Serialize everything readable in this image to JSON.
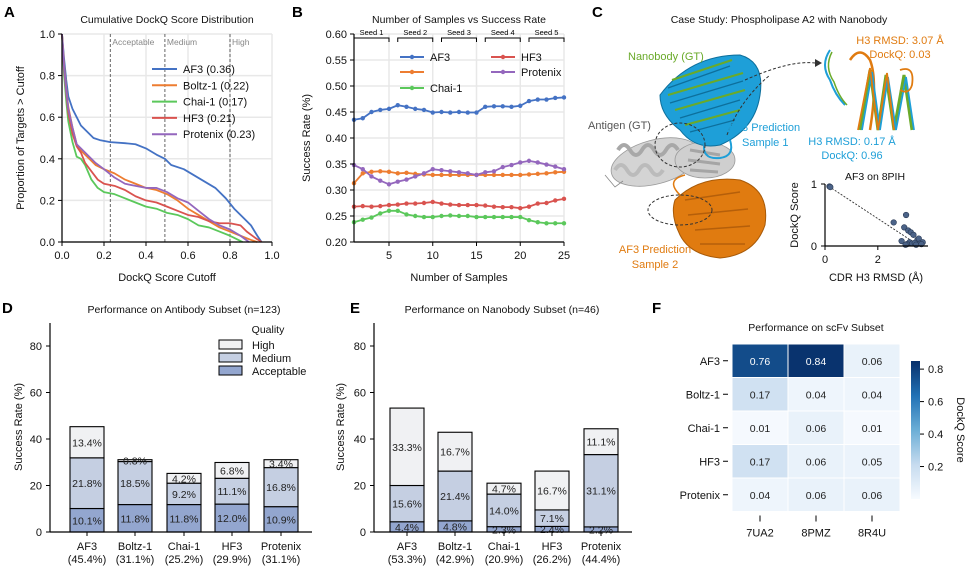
{
  "chart_data": [
    {
      "id": "A",
      "panel_label": "A",
      "type": "line",
      "title": "Cumulative DockQ Score Distribution",
      "xlabel": "DockQ Score Cutoff",
      "ylabel": "Proportion of Targets > Cutoff",
      "xlim": [
        0,
        1
      ],
      "ylim": [
        0,
        1
      ],
      "xticks": [
        "0.0",
        "0.2",
        "0.4",
        "0.6",
        "0.8",
        "1.0"
      ],
      "yticks": [
        "0.0",
        "0.2",
        "0.4",
        "0.6",
        "0.8",
        "1.0"
      ],
      "grid": true,
      "legend_position": "upper-right",
      "thresholds": [
        {
          "x": 0.23,
          "label": "Acceptable"
        },
        {
          "x": 0.49,
          "label": "Medium"
        },
        {
          "x": 0.8,
          "label": "High"
        }
      ],
      "series": [
        {
          "name": "AF3 (0.36)",
          "color": "#4472c4",
          "x": [
            0.0,
            0.01,
            0.02,
            0.03,
            0.05,
            0.07,
            0.09,
            0.12,
            0.15,
            0.18,
            0.23,
            0.3,
            0.35,
            0.4,
            0.45,
            0.49,
            0.52,
            0.58,
            0.63,
            0.68,
            0.73,
            0.78,
            0.82,
            0.86,
            0.9,
            0.93,
            0.95
          ],
          "y": [
            1.0,
            0.88,
            0.78,
            0.7,
            0.64,
            0.6,
            0.56,
            0.53,
            0.5,
            0.49,
            0.48,
            0.475,
            0.47,
            0.45,
            0.42,
            0.4,
            0.37,
            0.35,
            0.32,
            0.29,
            0.26,
            0.21,
            0.16,
            0.12,
            0.08,
            0.03,
            0.0
          ]
        },
        {
          "name": "Boltz-1 (0.22)",
          "color": "#ed7d31",
          "x": [
            0.0,
            0.01,
            0.02,
            0.03,
            0.05,
            0.07,
            0.09,
            0.12,
            0.16,
            0.2,
            0.25,
            0.3,
            0.35,
            0.4,
            0.45,
            0.5,
            0.55,
            0.6,
            0.65,
            0.7,
            0.75,
            0.8,
            0.85,
            0.9,
            0.93
          ],
          "y": [
            1.0,
            0.85,
            0.74,
            0.65,
            0.55,
            0.47,
            0.44,
            0.41,
            0.37,
            0.35,
            0.33,
            0.3,
            0.28,
            0.26,
            0.25,
            0.23,
            0.2,
            0.16,
            0.13,
            0.1,
            0.07,
            0.05,
            0.03,
            0.01,
            0.0
          ]
        },
        {
          "name": "Chai-1 (0.17)",
          "color": "#5bc85b",
          "x": [
            0.0,
            0.01,
            0.02,
            0.03,
            0.05,
            0.07,
            0.09,
            0.11,
            0.14,
            0.17,
            0.2,
            0.25,
            0.3,
            0.35,
            0.4,
            0.45,
            0.5,
            0.55,
            0.6,
            0.65,
            0.7,
            0.75,
            0.8,
            0.84,
            0.86
          ],
          "y": [
            1.0,
            0.8,
            0.68,
            0.58,
            0.48,
            0.41,
            0.4,
            0.37,
            0.3,
            0.26,
            0.24,
            0.23,
            0.21,
            0.19,
            0.17,
            0.16,
            0.14,
            0.13,
            0.11,
            0.08,
            0.07,
            0.05,
            0.03,
            0.01,
            0.0
          ]
        },
        {
          "name": "HF3 (0.21)",
          "color": "#d9534f",
          "x": [
            0.0,
            0.01,
            0.02,
            0.03,
            0.05,
            0.07,
            0.09,
            0.11,
            0.14,
            0.17,
            0.2,
            0.25,
            0.3,
            0.35,
            0.4,
            0.45,
            0.5,
            0.55,
            0.6,
            0.65,
            0.7,
            0.75,
            0.8,
            0.85,
            0.88,
            0.92,
            0.95
          ],
          "y": [
            1.0,
            0.83,
            0.72,
            0.62,
            0.52,
            0.46,
            0.43,
            0.38,
            0.34,
            0.3,
            0.28,
            0.27,
            0.25,
            0.22,
            0.2,
            0.19,
            0.17,
            0.15,
            0.13,
            0.12,
            0.1,
            0.09,
            0.09,
            0.08,
            0.05,
            0.02,
            0.0
          ]
        },
        {
          "name": "Protenix (0.23)",
          "color": "#9467bd",
          "x": [
            0.0,
            0.01,
            0.02,
            0.03,
            0.05,
            0.07,
            0.09,
            0.12,
            0.16,
            0.2,
            0.25,
            0.3,
            0.35,
            0.4,
            0.45,
            0.5,
            0.55,
            0.6,
            0.65,
            0.7,
            0.75,
            0.8,
            0.85,
            0.89
          ],
          "y": [
            1.0,
            0.84,
            0.73,
            0.64,
            0.55,
            0.47,
            0.45,
            0.42,
            0.38,
            0.35,
            0.31,
            0.28,
            0.27,
            0.26,
            0.26,
            0.24,
            0.21,
            0.19,
            0.15,
            0.11,
            0.08,
            0.06,
            0.03,
            0.0
          ]
        }
      ]
    },
    {
      "id": "B",
      "panel_label": "B",
      "type": "line",
      "title": "Number of Samples vs Success Rate",
      "xlabel": "Number of Samples",
      "ylabel": "Success Rate (%)",
      "xlim": [
        1,
        25
      ],
      "ylim": [
        0.2,
        0.6
      ],
      "xticks": [
        5,
        10,
        15,
        20,
        25
      ],
      "yticks": [
        "0.20",
        "0.25",
        "0.30",
        "0.35",
        "0.40",
        "0.45",
        "0.50",
        "0.55",
        "0.60"
      ],
      "grid": true,
      "legend_position": "top",
      "seed_brackets": [
        {
          "label": "Seed 1",
          "from": 1,
          "to": 5
        },
        {
          "label": "Seed 2",
          "from": 6,
          "to": 10
        },
        {
          "label": "Seed 3",
          "from": 11,
          "to": 15
        },
        {
          "label": "Seed 4",
          "from": 16,
          "to": 20
        },
        {
          "label": "Seed 5",
          "from": 21,
          "to": 25
        }
      ],
      "x": [
        1,
        2,
        3,
        4,
        5,
        6,
        7,
        8,
        9,
        10,
        11,
        12,
        13,
        14,
        15,
        16,
        17,
        18,
        19,
        20,
        21,
        22,
        23,
        24,
        25
      ],
      "series": [
        {
          "name": "AF3",
          "color": "#4472c4",
          "values": [
            0.435,
            0.438,
            0.45,
            0.454,
            0.456,
            0.463,
            0.46,
            0.456,
            0.454,
            0.449,
            0.45,
            0.449,
            0.45,
            0.449,
            0.449,
            0.46,
            0.461,
            0.461,
            0.46,
            0.462,
            0.471,
            0.474,
            0.474,
            0.477,
            0.478
          ]
        },
        {
          "name": "",
          "color": "#ed7d31",
          "values": [
            0.313,
            0.332,
            0.335,
            0.336,
            0.335,
            0.332,
            0.333,
            0.331,
            0.33,
            0.329,
            0.329,
            0.329,
            0.329,
            0.329,
            0.329,
            0.329,
            0.329,
            0.329,
            0.329,
            0.329,
            0.33,
            0.331,
            0.332,
            0.334,
            0.335
          ]
        },
        {
          "name": "Chai-1",
          "color": "#5bc85b",
          "values": [
            0.238,
            0.243,
            0.247,
            0.255,
            0.26,
            0.26,
            0.253,
            0.25,
            0.248,
            0.248,
            0.25,
            0.251,
            0.25,
            0.25,
            0.248,
            0.248,
            0.248,
            0.248,
            0.248,
            0.248,
            0.242,
            0.238,
            0.236,
            0.236,
            0.236
          ]
        },
        {
          "name": "HF3",
          "color": "#d9534f",
          "values": [
            0.268,
            0.269,
            0.268,
            0.269,
            0.271,
            0.272,
            0.274,
            0.274,
            0.275,
            0.277,
            0.274,
            0.272,
            0.271,
            0.271,
            0.271,
            0.27,
            0.268,
            0.267,
            0.267,
            0.265,
            0.268,
            0.274,
            0.275,
            0.28,
            0.283
          ]
        },
        {
          "name": "Protenix",
          "color": "#9467bd",
          "values": [
            0.348,
            0.34,
            0.326,
            0.318,
            0.311,
            0.316,
            0.32,
            0.326,
            0.332,
            0.34,
            0.338,
            0.336,
            0.334,
            0.332,
            0.329,
            0.334,
            0.336,
            0.344,
            0.348,
            0.353,
            0.356,
            0.353,
            0.349,
            0.345,
            0.34
          ]
        }
      ]
    },
    {
      "id": "C-scatter",
      "type": "scatter",
      "title": "AF3 on 8PIH",
      "xlabel": "CDR H3 RMSD (Å)",
      "ylabel": "DockQ Score",
      "xlim": [
        0,
        3.9
      ],
      "ylim": [
        0,
        1
      ],
      "xticks": [
        0,
        2
      ],
      "yticks": [
        0,
        1
      ],
      "marker_color": "#4b6388",
      "trendline": true,
      "points": [
        [
          0.17,
          0.96
        ],
        [
          0.2,
          0.95
        ],
        [
          2.6,
          0.38
        ],
        [
          3.07,
          0.5
        ],
        [
          3.0,
          0.3
        ],
        [
          3.15,
          0.25
        ],
        [
          3.25,
          0.22
        ],
        [
          3.35,
          0.18
        ],
        [
          3.5,
          0.1
        ],
        [
          3.55,
          0.12
        ],
        [
          3.2,
          0.06
        ],
        [
          3.3,
          0.04
        ],
        [
          3.1,
          0.03
        ],
        [
          3.4,
          0.05
        ],
        [
          3.6,
          0.04
        ],
        [
          3.7,
          0.06
        ],
        [
          2.9,
          0.08
        ],
        [
          3.05,
          0.02
        ],
        [
          3.45,
          0.02
        ],
        [
          3.65,
          0.03
        ]
      ]
    },
    {
      "id": "D",
      "panel_label": "D",
      "type": "bar",
      "stacked": true,
      "title": "Performance on Antibody Subset (n=123)",
      "ylabel": "Success Rate (%)",
      "ylim": [
        0,
        90
      ],
      "yticks": [
        0,
        20,
        40,
        60,
        80
      ],
      "legend_title": "Quality",
      "legend_position": "top-right",
      "categories": [
        "AF3",
        "Boltz-1",
        "Chai-1",
        "HF3",
        "Protenix"
      ],
      "category_totals": [
        "(45.4%)",
        "(31.1%)",
        "(25.2%)",
        "(29.9%)",
        "(31.1%)"
      ],
      "series": [
        {
          "name": "Acceptable",
          "color": "#93a6cf",
          "values": [
            10.1,
            11.8,
            11.8,
            12.0,
            10.9
          ]
        },
        {
          "name": "Medium",
          "color": "#c5cfe2",
          "values": [
            21.8,
            18.5,
            9.2,
            11.1,
            16.8
          ]
        },
        {
          "name": "High",
          "color": "#f0f1f3",
          "values": [
            13.4,
            0.8,
            4.2,
            6.8,
            3.4
          ]
        }
      ]
    },
    {
      "id": "E",
      "panel_label": "E",
      "type": "bar",
      "stacked": true,
      "title": "Performance on Nanobody Subset (n=46)",
      "ylabel": "Success Rate (%)",
      "ylim": [
        0,
        90
      ],
      "yticks": [
        0,
        20,
        40,
        60,
        80
      ],
      "categories": [
        "AF3",
        "Boltz-1",
        "Chai-1",
        "HF3",
        "Protenix"
      ],
      "category_totals": [
        "(53.3%)",
        "(42.9%)",
        "(20.9%)",
        "(26.2%)",
        "(44.4%)"
      ],
      "series": [
        {
          "name": "Acceptable",
          "color": "#93a6cf",
          "values": [
            4.4,
            4.8,
            2.3,
            2.4,
            2.2
          ]
        },
        {
          "name": "Medium",
          "color": "#c5cfe2",
          "values": [
            15.6,
            21.4,
            14.0,
            7.1,
            31.1
          ]
        },
        {
          "name": "High",
          "color": "#f0f1f3",
          "values": [
            33.3,
            16.7,
            4.7,
            16.7,
            11.1
          ]
        }
      ]
    },
    {
      "id": "F",
      "panel_label": "F",
      "type": "heatmap",
      "title": "Performance on scFv Subset",
      "rows": [
        "AF3",
        "Boltz-1",
        "Chai-1",
        "HF3",
        "Protenix"
      ],
      "cols": [
        "7UA2",
        "8PMZ",
        "8R4U"
      ],
      "values": [
        [
          0.76,
          0.84,
          0.06
        ],
        [
          0.17,
          0.04,
          0.04
        ],
        [
          0.01,
          0.06,
          0.01
        ],
        [
          0.17,
          0.06,
          0.05
        ],
        [
          0.04,
          0.06,
          0.06
        ]
      ],
      "labels": [
        [
          "0.76",
          "0.84",
          "0.06"
        ],
        [
          "0.17",
          "0.04",
          "0.04"
        ],
        [
          "0.01",
          "0.06",
          "0.01"
        ],
        [
          "0.17",
          "0.06",
          "0.05"
        ],
        [
          "0.04",
          "0.06",
          "0.06"
        ]
      ],
      "colorbar_label": "DockQ Score",
      "colorbar_ticks": [
        "0.2",
        "0.4",
        "0.6",
        "0.8"
      ],
      "colorbar_range": [
        0.0,
        0.85
      ],
      "colormap": "Blues"
    }
  ],
  "panel_c": {
    "panel_label": "C",
    "title": "Case Study: Phospholipase A2 with Nanobody",
    "labels": {
      "nanobody_gt": "Nanobody (GT)",
      "antigen_gt": "Antigen (GT)",
      "af3_pred1_line1": "AF3 Prediction",
      "af3_pred1_line2": "Sample 1",
      "af3_pred2_line1": "AF3 Prediction",
      "af3_pred2_line2": "Sample 2",
      "pred2_rmsd": "H3 RMSD: 3.07 Å",
      "pred2_dockq": "DockQ: 0.03",
      "pred1_rmsd": "H3 RMSD: 0.17 Å",
      "pred1_dockq": "DockQ: 0.96"
    },
    "colors": {
      "nanobody_gt": "#6aaa2a",
      "sample1": "#1e9fd8",
      "sample2": "#e07b10",
      "antigen": "#c8c8c8"
    }
  }
}
